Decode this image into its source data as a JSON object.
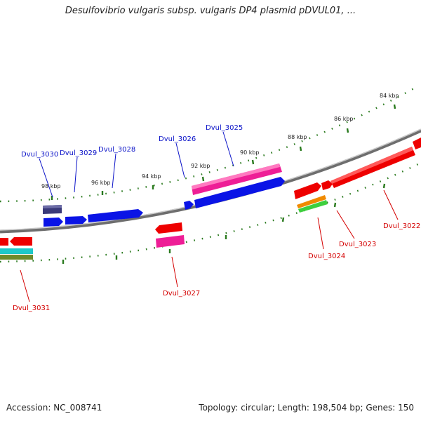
{
  "title": "Desulfovibrio vulgaris subsp. vulgaris DP4 plasmid pDVUL01, ...",
  "footer": {
    "accession": "Accession: NC_008741",
    "summary": "Topology: circular; Length: 198,504 bp; Genes: 150"
  },
  "colors": {
    "blue": "#0a14e6",
    "red": "#ee0000",
    "pink": "#ee1e96",
    "navy": "#3a3a7a",
    "orange": "#f08a00",
    "green": "#3ecf3e",
    "cyan": "#1ec8c8",
    "olive": "#6e8a2a",
    "tick": "#2a7a1e",
    "backbone": "#808080"
  },
  "ticks": [
    {
      "label": "84 kbp"
    },
    {
      "label": "86 kbp"
    },
    {
      "label": "88 kbp"
    },
    {
      "label": "90 kbp"
    },
    {
      "label": "92 kbp"
    },
    {
      "label": "94 kbp"
    },
    {
      "label": "96 kbp"
    },
    {
      "label": "98 kbp"
    }
  ],
  "gene_labels": {
    "top": [
      "Dvul_3030",
      "Dvul_3029",
      "Dvul_3028",
      "Dvul_3026",
      "Dvul_3025"
    ],
    "bottom": [
      "Dvul_3031",
      "Dvul_3027",
      "Dvul_3024",
      "Dvul_3023",
      "Dvul_3022"
    ]
  }
}
